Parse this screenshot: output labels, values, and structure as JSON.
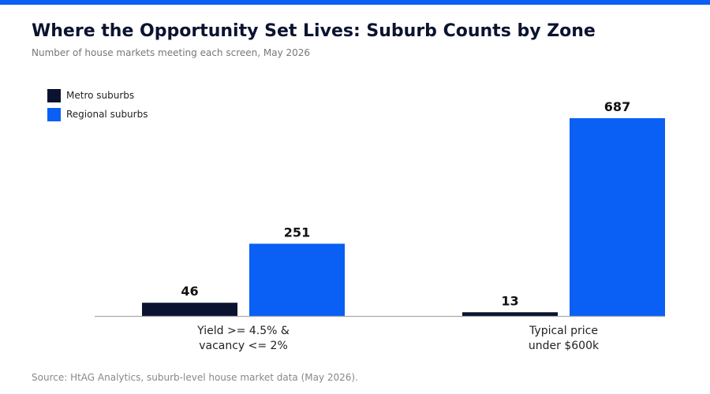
{
  "title": "Where the Opportunity Set Lives: Suburb Counts by Zone",
  "subtitle": "Number of house markets meeting each screen, May 2026",
  "source": "Source: HtAG Analytics, suburb-level house market data (May 2026).",
  "colors": {
    "accent_bar": "#0a5ff5",
    "metro": "#0b1330",
    "regional": "#0a5ff5",
    "axis": "#aaaaaa",
    "label": "#111111",
    "tick_text": "#222222"
  },
  "chart_data": {
    "type": "bar",
    "categories": [
      [
        "Yield >= 4.5% &",
        "vacancy <= 2%"
      ],
      [
        "Typical price",
        "under $600k"
      ]
    ],
    "series": [
      {
        "name": "Metro suburbs",
        "values": [
          46,
          13
        ]
      },
      {
        "name": "Regional suburbs",
        "values": [
          251,
          687
        ]
      }
    ],
    "ylim": [
      0,
      687
    ],
    "grid": false,
    "legend_position": "top-left",
    "data_labels": true
  }
}
